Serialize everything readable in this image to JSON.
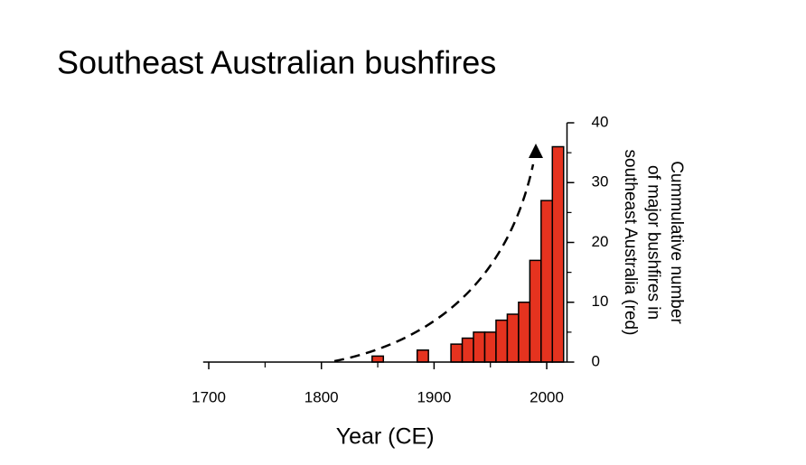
{
  "title": "Southeast Australian bushfires",
  "chart_data": {
    "type": "histogram",
    "bins": [
      1695,
      1705,
      1715,
      1725,
      1735,
      1745,
      1755,
      1765,
      1775,
      1785,
      1795,
      1805,
      1815,
      1825,
      1835,
      1845,
      1855,
      1865,
      1875,
      1885,
      1895,
      1905,
      1915,
      1925,
      1935,
      1945,
      1955,
      1965,
      1975,
      1985,
      1995,
      2005,
      2015
    ],
    "values": [
      0,
      0,
      0,
      0,
      0,
      0,
      0,
      0,
      0,
      0,
      0,
      0,
      0,
      0,
      0,
      1,
      0,
      0,
      0,
      2,
      0,
      0,
      3,
      4,
      5,
      5,
      7,
      8,
      10,
      17,
      27,
      36
    ],
    "color": "#e5331f",
    "xlabel": "Year (CE)",
    "ylabel": [
      "Cummulative number",
      "of major bushfires in",
      "southeast Australia (red)"
    ],
    "xlim": [
      1695,
      2018
    ],
    "xticks": [
      1700,
      1800,
      1900,
      2000
    ],
    "xminorticks": [
      1750,
      1850,
      1950
    ],
    "ylim": [
      0,
      40
    ],
    "yticks": [
      0,
      10,
      20,
      30,
      40
    ],
    "yminorticks": [
      5,
      15,
      25,
      35
    ],
    "yaxis_side": "right"
  }
}
